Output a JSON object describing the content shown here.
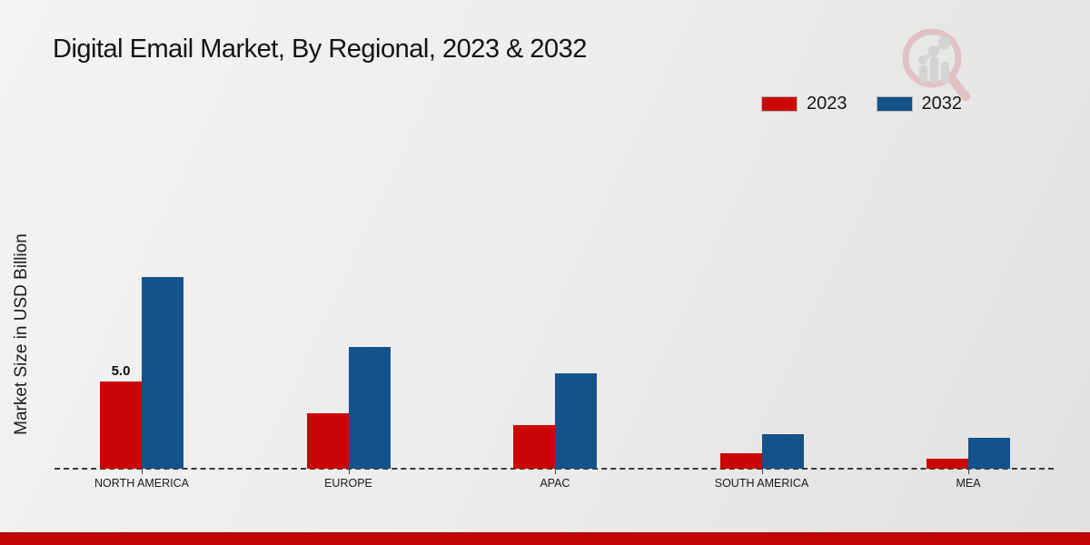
{
  "title": "Digital Email Market, By Regional, 2023 & 2032",
  "footer": {
    "bar_color": "#c00505"
  },
  "logo": {
    "name": "market-research-future-watermark"
  },
  "chart_data": {
    "type": "bar",
    "title": "Digital Email Market, By Regional, 2023 & 2032",
    "xlabel": "",
    "ylabel": "Market Size in USD Billion",
    "categories": [
      "NORTH AMERICA",
      "EUROPE",
      "APAC",
      "SOUTH AMERICA",
      "MEA"
    ],
    "series": [
      {
        "name": "2023",
        "color": "#cb0606",
        "values": [
          5.0,
          3.2,
          2.5,
          0.9,
          0.6
        ]
      },
      {
        "name": "2032",
        "color": "#14528c",
        "values": [
          11.0,
          7.0,
          5.5,
          2.0,
          1.8
        ]
      }
    ],
    "ylim": [
      0,
      12
    ],
    "grid": false,
    "legend_position": "top-right",
    "baseline_style": "dashed",
    "annotations": [
      {
        "category": "NORTH AMERICA",
        "series": "2023",
        "text": "5.0"
      }
    ]
  }
}
